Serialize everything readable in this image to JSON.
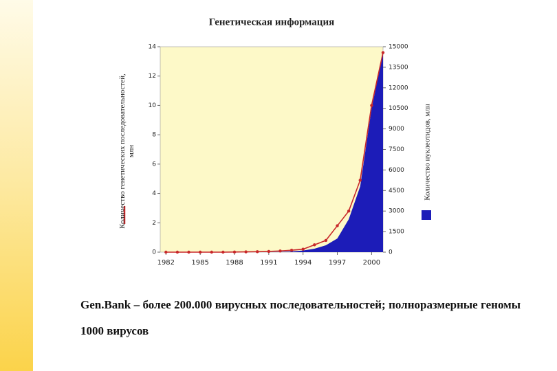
{
  "chart_data": {
    "type": "line-area",
    "title": "Генетическая информация",
    "x": [
      1982,
      1983,
      1984,
      1985,
      1986,
      1987,
      1988,
      1989,
      1990,
      1991,
      1992,
      1993,
      1994,
      1995,
      1996,
      1997,
      1998,
      1999,
      2000,
      2001
    ],
    "xlim": [
      1981.5,
      2001
    ],
    "xticks": [
      1982,
      1985,
      1988,
      1991,
      1994,
      1997,
      2000
    ],
    "ylim": [
      0,
      14
    ],
    "yticks": [
      0,
      2,
      4,
      6,
      8,
      10,
      12,
      14
    ],
    "y2lim": [
      0,
      15000
    ],
    "y2ticks": [
      0,
      1500,
      3000,
      4500,
      6000,
      7500,
      9000,
      10500,
      12000,
      13500,
      15000
    ],
    "background": "#fdf9c8",
    "series": [
      {
        "name": "Количество генетических последовательностей, млн",
        "color": "#c8282a",
        "axis": "y",
        "values": [
          0,
          0,
          0,
          0,
          0,
          0,
          0.01,
          0.02,
          0.03,
          0.05,
          0.08,
          0.13,
          0.2,
          0.5,
          0.8,
          1.8,
          2.8,
          4.9,
          10.0,
          13.6
        ]
      },
      {
        "name": "Количество нуклеотидов, млн",
        "color": "#1c1cb8",
        "axis": "y2",
        "values": [
          0,
          0,
          0,
          0,
          0,
          0,
          0,
          0,
          0,
          0,
          20,
          50,
          120,
          250,
          500,
          1000,
          2400,
          4800,
          10500,
          14500
        ]
      }
    ]
  },
  "caption": "Gen.Bank – более 200.000 вирусных последовательностей; полноразмерные геномы 1000 вирусов"
}
